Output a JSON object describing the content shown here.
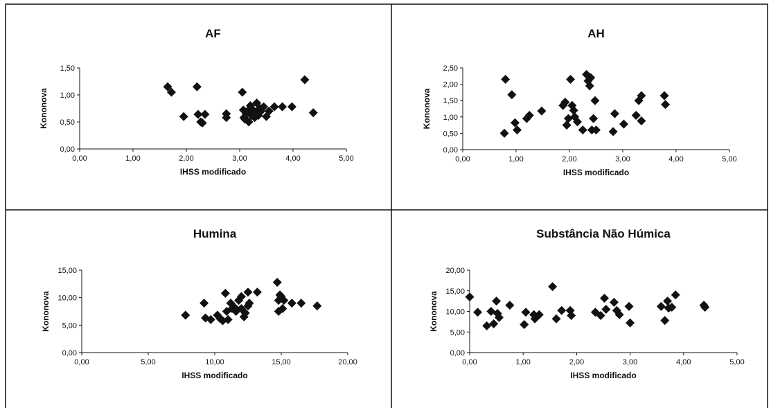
{
  "chart_data": [
    {
      "type": "scatter",
      "title": "AF",
      "xlabel": "IHSS modificado",
      "ylabel": "Kononova",
      "xlim": [
        0,
        5
      ],
      "ylim": [
        0,
        1.5
      ],
      "xticks": [
        "0,00",
        "1,00",
        "2,00",
        "3,00",
        "4,00",
        "5,00"
      ],
      "yticks": [
        "0,00",
        "0,50",
        "1,00",
        "1,50"
      ],
      "grid": false,
      "legend": "none",
      "marker": "diamond",
      "x": [
        1.65,
        1.72,
        1.95,
        2.2,
        2.22,
        2.27,
        2.3,
        2.35,
        2.75,
        2.75,
        3.05,
        3.07,
        3.08,
        3.1,
        3.12,
        3.15,
        3.17,
        3.2,
        3.22,
        3.25,
        3.28,
        3.3,
        3.32,
        3.35,
        3.38,
        3.4,
        3.45,
        3.5,
        3.55,
        3.65,
        3.8,
        3.98,
        4.22,
        4.38
      ],
      "y": [
        1.15,
        1.05,
        0.6,
        1.15,
        0.64,
        0.5,
        0.48,
        0.64,
        0.58,
        0.65,
        1.05,
        0.72,
        0.58,
        0.55,
        0.65,
        0.7,
        0.5,
        0.8,
        0.62,
        0.72,
        0.58,
        0.68,
        0.85,
        0.62,
        0.75,
        0.7,
        0.78,
        0.6,
        0.7,
        0.78,
        0.78,
        0.78,
        1.28,
        0.67
      ]
    },
    {
      "type": "scatter",
      "title": "AH",
      "xlabel": "IHSS modificado",
      "ylabel": "Kononova",
      "xlim": [
        0,
        5
      ],
      "ylim": [
        0,
        2.5
      ],
      "xticks": [
        "0,00",
        "1,00",
        "2,00",
        "3,00",
        "4,00",
        "5,00"
      ],
      "yticks": [
        "0,00",
        "0,50",
        "1,00",
        "1,50",
        "2,00",
        "2,50"
      ],
      "grid": false,
      "legend": "none",
      "marker": "diamond",
      "x": [
        0.78,
        0.8,
        0.92,
        0.98,
        1.02,
        1.2,
        1.25,
        1.48,
        1.88,
        1.92,
        1.95,
        1.98,
        2.02,
        2.05,
        2.08,
        2.1,
        2.15,
        2.25,
        2.32,
        2.35,
        2.38,
        2.4,
        2.42,
        2.45,
        2.48,
        2.5,
        2.82,
        2.85,
        3.02,
        3.25,
        3.3,
        3.35,
        3.35,
        3.78,
        3.8
      ],
      "y": [
        0.5,
        2.15,
        1.68,
        0.82,
        0.6,
        0.95,
        1.05,
        1.18,
        1.35,
        1.45,
        0.75,
        0.95,
        2.15,
        1.35,
        1.2,
        1.0,
        0.85,
        0.6,
        2.3,
        2.1,
        1.95,
        2.2,
        0.6,
        0.95,
        1.5,
        0.6,
        0.55,
        1.1,
        0.78,
        1.05,
        1.5,
        0.88,
        1.65,
        1.65,
        1.38
      ]
    },
    {
      "type": "scatter",
      "title": "Humina",
      "xlabel": "IHSS modificado",
      "ylabel": "Kononova",
      "xlim": [
        0,
        20
      ],
      "ylim": [
        0,
        15
      ],
      "xticks": [
        "0,00",
        "5,00",
        "10,00",
        "15,00",
        "20,00"
      ],
      "yticks": [
        "0,00",
        "5,00",
        "10,00",
        "15,00"
      ],
      "grid": false,
      "legend": "none",
      "marker": "diamond",
      "x": [
        7.8,
        9.2,
        9.3,
        9.7,
        10.2,
        10.4,
        10.6,
        10.8,
        10.9,
        11.0,
        11.2,
        11.3,
        11.5,
        11.6,
        11.8,
        12.0,
        12.0,
        12.2,
        12.3,
        12.5,
        12.5,
        12.6,
        13.2,
        14.7,
        14.8,
        14.8,
        14.9,
        15.0,
        15.1,
        15.2,
        15.8,
        16.5,
        17.7
      ],
      "y": [
        6.8,
        9.0,
        6.3,
        6.0,
        6.8,
        6.2,
        5.8,
        10.8,
        7.5,
        6.0,
        9.0,
        8.0,
        8.2,
        7.5,
        9.5,
        10.2,
        8.0,
        6.5,
        7.2,
        8.5,
        11.0,
        9.0,
        11.0,
        12.8,
        7.5,
        9.5,
        10.5,
        10.2,
        8.0,
        9.5,
        9.0,
        9.0,
        8.5
      ]
    },
    {
      "type": "scatter",
      "title": "Substância Não Húmica",
      "xlabel": "IHSS modificado",
      "ylabel": "Kononova",
      "xlim": [
        0,
        5
      ],
      "ylim": [
        0,
        20
      ],
      "xticks": [
        "0,00",
        "1,00",
        "2,00",
        "3,00",
        "4,00",
        "5,00"
      ],
      "yticks": [
        "0,00",
        "5,00",
        "10,00",
        "15,00",
        "20,00"
      ],
      "grid": false,
      "legend": "none",
      "marker": "diamond",
      "x": [
        0.0,
        0.15,
        0.32,
        0.4,
        0.45,
        0.5,
        0.52,
        0.55,
        0.75,
        1.02,
        1.05,
        1.2,
        1.22,
        1.3,
        1.55,
        1.62,
        1.72,
        1.88,
        1.9,
        2.35,
        2.45,
        2.52,
        2.55,
        2.7,
        2.75,
        2.8,
        2.98,
        3.0,
        3.58,
        3.65,
        3.7,
        3.72,
        3.78,
        3.85,
        4.38,
        4.4
      ],
      "y": [
        13.5,
        9.8,
        6.5,
        10.0,
        7.0,
        12.5,
        9.5,
        8.5,
        11.5,
        6.8,
        9.8,
        9.2,
        8.2,
        9.2,
        16.0,
        8.2,
        10.2,
        10.2,
        9.0,
        9.8,
        9.0,
        13.2,
        10.5,
        12.2,
        10.2,
        9.2,
        11.2,
        7.2,
        11.2,
        7.8,
        12.5,
        10.8,
        11.0,
        14.0,
        11.5,
        11.0
      ]
    }
  ]
}
